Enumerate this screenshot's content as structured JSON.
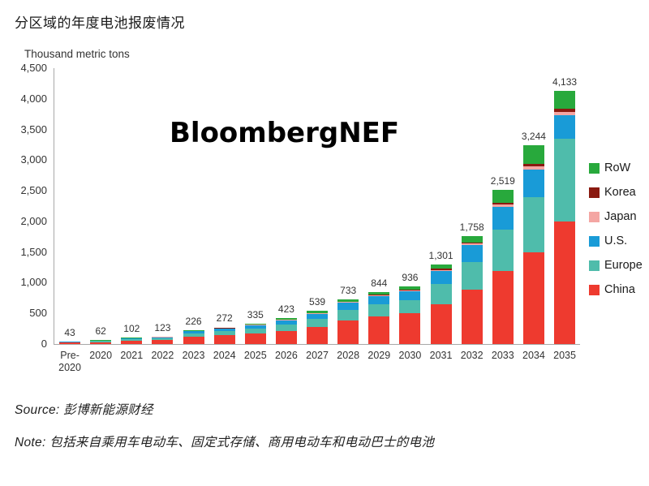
{
  "title": "分区域的年度电池报废情况",
  "watermark": "BloombergNEF",
  "source": {
    "label": "Source:",
    "text": "彭博新能源财经"
  },
  "note": {
    "label": "Note:",
    "text": "包括来自乘用车电动车、固定式存储、商用电动车和电动巴士的电池"
  },
  "chart_data": {
    "type": "bar",
    "stacked": true,
    "title": "分区域的年度电池报废情况",
    "y_axis_title": "Thousand metric tons",
    "ylim": [
      0,
      4500
    ],
    "grid": false,
    "legend_position": "right",
    "categories": [
      "Pre-2020",
      "2020",
      "2021",
      "2022",
      "2023",
      "2024",
      "2025",
      "2026",
      "2027",
      "2028",
      "2029",
      "2030",
      "2031",
      "2032",
      "2033",
      "2034",
      "2035"
    ],
    "categories_display": [
      "Pre-\n2020",
      "2020",
      "2021",
      "2022",
      "2023",
      "2024",
      "2025",
      "2026",
      "2027",
      "2028",
      "2029",
      "2030",
      "2031",
      "2032",
      "2033",
      "2034",
      "2035"
    ],
    "totals": [
      43,
      62,
      102,
      123,
      226,
      272,
      335,
      423,
      539,
      733,
      844,
      936,
      1301,
      1758,
      2519,
      3244,
      4133
    ],
    "totals_display": [
      "43",
      "62",
      "102",
      "123",
      "226",
      "272",
      "335",
      "423",
      "539",
      "733",
      "844",
      "936",
      "1,301",
      "1,758",
      "2,519",
      "3,244",
      "4,133"
    ],
    "y_tick_values": [
      0,
      500,
      1000,
      1500,
      2000,
      2500,
      3000,
      3500,
      4000,
      4500
    ],
    "y_ticks_display": [
      "0",
      "500",
      "1,000",
      "1,500",
      "2,000",
      "2,500",
      "3,000",
      "3,500",
      "4,000",
      "4,500"
    ],
    "series": [
      {
        "name": "China",
        "color": "#ee3a2f",
        "values": [
          22,
          32,
          52,
          62,
          118,
          140,
          170,
          215,
          275,
          385,
          450,
          500,
          650,
          890,
          1190,
          1500,
          2000
        ]
      },
      {
        "name": "Europe",
        "color": "#4fbcab",
        "values": [
          10,
          15,
          25,
          30,
          55,
          68,
          85,
          105,
          130,
          170,
          195,
          215,
          330,
          450,
          680,
          900,
          1350
        ]
      },
      {
        "name": "U.S.",
        "color": "#199bd7",
        "values": [
          6,
          9,
          15,
          19,
          33,
          40,
          50,
          65,
          85,
          115,
          135,
          150,
          210,
          270,
          370,
          450,
          380
        ]
      },
      {
        "name": "Japan",
        "color": "#f4a6a3",
        "values": [
          2,
          2,
          3,
          3,
          5,
          6,
          7,
          8,
          10,
          12,
          13,
          15,
          20,
          26,
          38,
          48,
          60
        ]
      },
      {
        "name": "Korea",
        "color": "#8a1a10",
        "values": [
          1,
          1,
          2,
          3,
          4,
          5,
          6,
          7,
          9,
          11,
          12,
          13,
          16,
          21,
          30,
          38,
          45
        ]
      },
      {
        "name": "RoW",
        "color": "#28a93c",
        "values": [
          2,
          3,
          5,
          6,
          11,
          13,
          17,
          23,
          30,
          40,
          39,
          43,
          75,
          101,
          211,
          308,
          298
        ]
      }
    ],
    "legend_order": [
      "RoW",
      "Korea",
      "Japan",
      "U.S.",
      "Europe",
      "China"
    ]
  }
}
